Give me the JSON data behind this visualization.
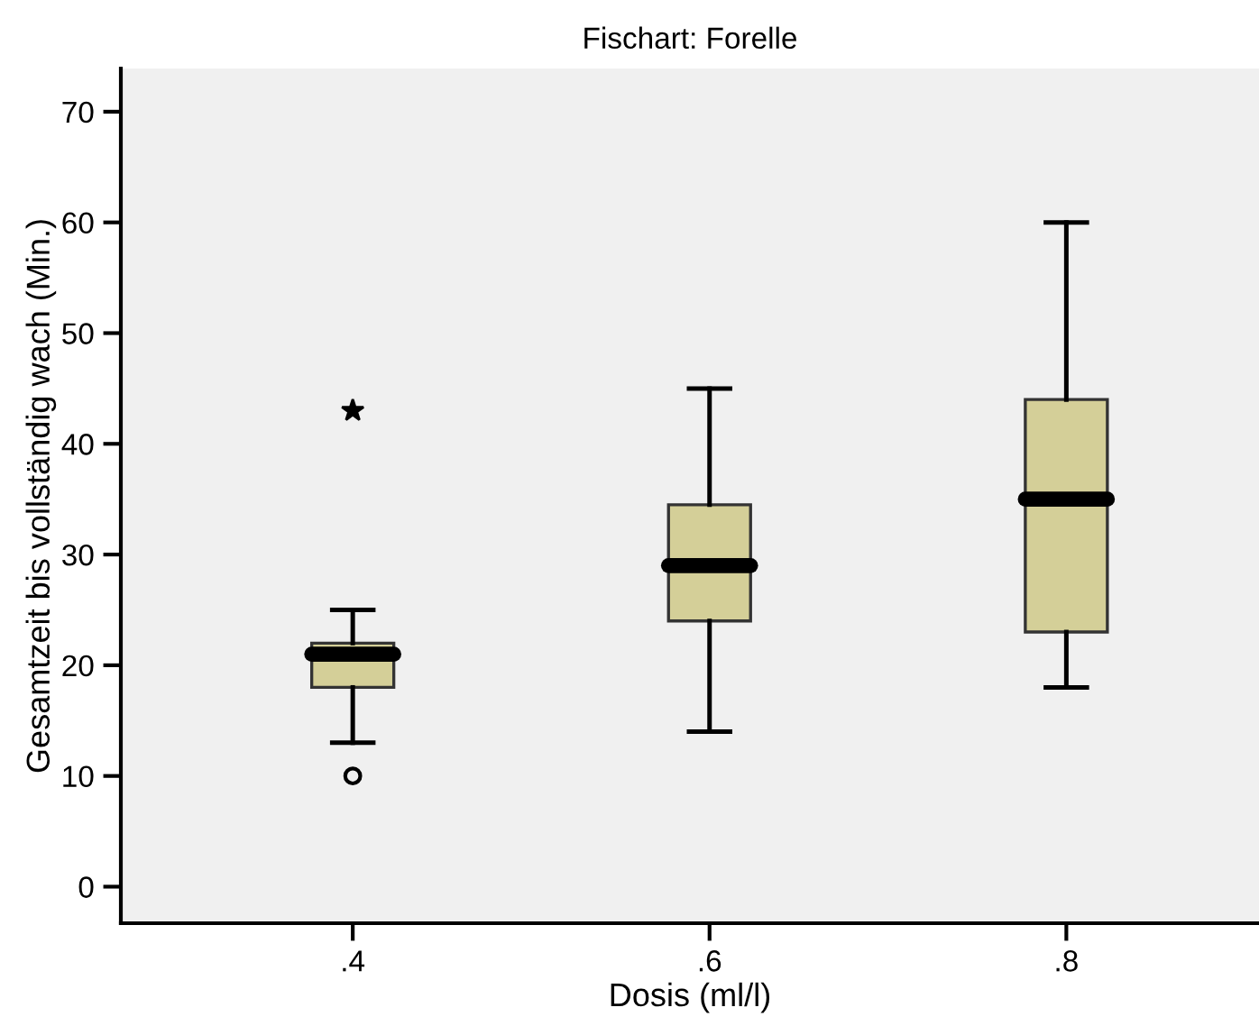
{
  "chart_data": {
    "type": "box",
    "title": "Fischart: Forelle",
    "xlabel": "Dosis (ml/l)",
    "ylabel": "Gesamtzeit bis vollständig wach (Min.)",
    "categories": [
      ".4",
      ".6",
      ".8"
    ],
    "color": "#d4cf98",
    "boxes": [
      {
        "low": 13,
        "q1": 18,
        "median": 21,
        "q3": 22,
        "high": 25,
        "outliers": [
          43,
          10
        ]
      },
      {
        "low": 14,
        "q1": 24,
        "median": 29,
        "q3": 34.5,
        "high": 45
      },
      {
        "low": 18,
        "q1": 23,
        "median": 35,
        "q3": 44,
        "high": 60
      }
    ],
    "ylim": [
      -3.3,
      73.9
    ],
    "yticks": [
      0,
      10,
      20,
      30,
      40,
      50,
      60,
      70
    ],
    "grid": false,
    "legend": false
  }
}
